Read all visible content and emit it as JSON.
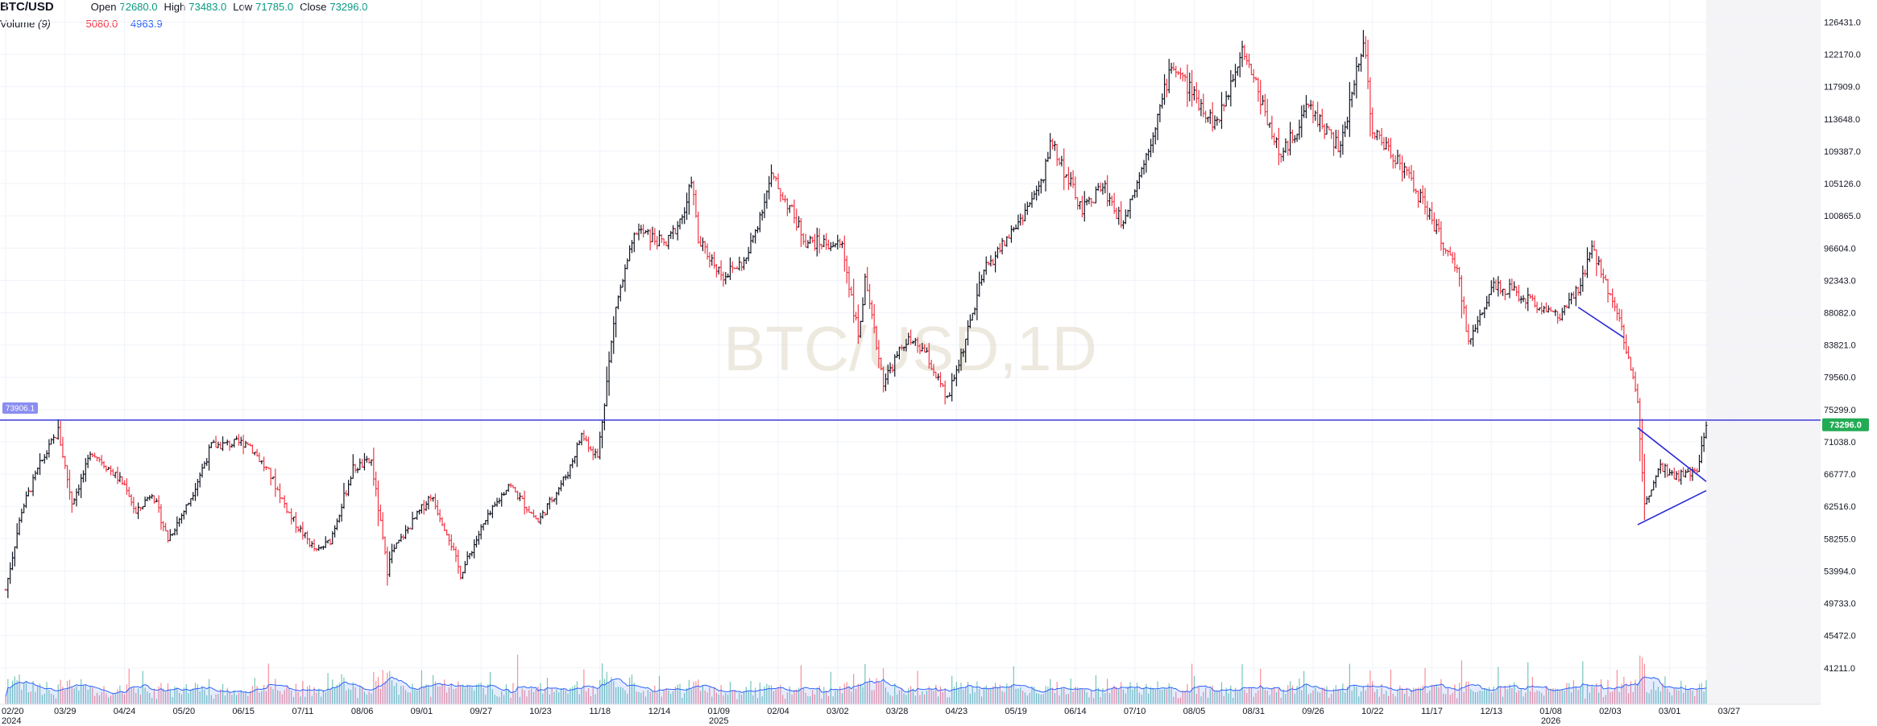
{
  "symbol": "BTC/USD",
  "legend": {
    "open_label": "Open",
    "open": "72680.0",
    "high_label": "High",
    "high": "73483.0",
    "low_label": "Low",
    "low": "71785.0",
    "close_label": "Close",
    "close": "73296.0"
  },
  "volume_legend": {
    "label": "Volume",
    "period": "(9)",
    "value1": "5080.0",
    "value2": "4963.9"
  },
  "watermark": "BTC/USD,1D",
  "colors": {
    "up": "#089981",
    "down": "#f23645",
    "bar": "#131722",
    "line": "#2a2ad6",
    "volume_ma": "#2962ff",
    "last_price": "#22ab54"
  },
  "chart_data": {
    "type": "ohlc",
    "timeframe": "1D",
    "y_ticks": [
      "126431.0",
      "122170.0",
      "117909.0",
      "113648.0",
      "109387.0",
      "105126.0",
      "100865.0",
      "96604.0",
      "92343.0",
      "88082.0",
      "83821.0",
      "79560.0",
      "75299.0",
      "71038.0",
      "66777.0",
      "62516.0",
      "58255.0",
      "53994.0",
      "49733.0",
      "45472.0",
      "41211.0"
    ],
    "x_ticks": [
      "02/20",
      "03/29",
      "04/24",
      "05/20",
      "06/15",
      "07/11",
      "08/06",
      "09/01",
      "09/27",
      "10/23",
      "11/18",
      "12/14",
      "01/09",
      "02/04",
      "03/02",
      "03/28",
      "04/23",
      "05/19",
      "06/14",
      "07/10",
      "08/05",
      "08/31",
      "09/26",
      "10/22",
      "11/17",
      "12/13",
      "01/08",
      "02/03",
      "03/01",
      "03/27"
    ],
    "x_year_labels": [
      {
        "tick": "02/20",
        "year": "2024"
      },
      {
        "tick": "01/09",
        "year": "2025"
      },
      {
        "tick": "01/08",
        "year": "2026"
      }
    ],
    "ylim": [
      38000,
      128500
    ],
    "horizontal_line": {
      "value": 73906.1,
      "label": "73906.1"
    },
    "last_price": {
      "value": 73296.0,
      "label": "73296.0"
    },
    "close_path": [
      {
        "x": "2024-02-20",
        "y": 51500
      },
      {
        "x": "2024-02-27",
        "y": 62000
      },
      {
        "x": "2024-03-06",
        "y": 68000
      },
      {
        "x": "2024-03-14",
        "y": 72500
      },
      {
        "x": "2024-03-20",
        "y": 63000
      },
      {
        "x": "2024-03-29",
        "y": 69800
      },
      {
        "x": "2024-04-13",
        "y": 65000
      },
      {
        "x": "2024-04-17",
        "y": 61500
      },
      {
        "x": "2024-04-24",
        "y": 64500
      },
      {
        "x": "2024-05-01",
        "y": 58200
      },
      {
        "x": "2024-05-10",
        "y": 63000
      },
      {
        "x": "2024-05-20",
        "y": 70500
      },
      {
        "x": "2024-06-05",
        "y": 71000
      },
      {
        "x": "2024-06-15",
        "y": 66500
      },
      {
        "x": "2024-06-24",
        "y": 61000
      },
      {
        "x": "2024-07-05",
        "y": 56500
      },
      {
        "x": "2024-07-11",
        "y": 58000
      },
      {
        "x": "2024-07-21",
        "y": 67500
      },
      {
        "x": "2024-07-29",
        "y": 68500
      },
      {
        "x": "2024-08-05",
        "y": 54000
      },
      {
        "x": "2024-08-06",
        "y": 56000
      },
      {
        "x": "2024-08-24",
        "y": 64000
      },
      {
        "x": "2024-09-01",
        "y": 58500
      },
      {
        "x": "2024-09-06",
        "y": 53500
      },
      {
        "x": "2024-09-15",
        "y": 59500
      },
      {
        "x": "2024-09-27",
        "y": 65500
      },
      {
        "x": "2024-10-10",
        "y": 60500
      },
      {
        "x": "2024-10-23",
        "y": 67000
      },
      {
        "x": "2024-10-29",
        "y": 72000
      },
      {
        "x": "2024-11-05",
        "y": 69000
      },
      {
        "x": "2024-11-13",
        "y": 89000
      },
      {
        "x": "2024-11-22",
        "y": 99000
      },
      {
        "x": "2024-12-05",
        "y": 97000
      },
      {
        "x": "2024-12-14",
        "y": 102000
      },
      {
        "x": "2024-12-16",
        "y": 106000
      },
      {
        "x": "2024-12-19",
        "y": 97500
      },
      {
        "x": "2024-12-30",
        "y": 93000
      },
      {
        "x": "2025-01-09",
        "y": 95000
      },
      {
        "x": "2025-01-20",
        "y": 106000
      },
      {
        "x": "2025-01-28",
        "y": 102000
      },
      {
        "x": "2025-02-04",
        "y": 97500
      },
      {
        "x": "2025-02-20",
        "y": 97000
      },
      {
        "x": "2025-02-27",
        "y": 85000
      },
      {
        "x": "2025-03-02",
        "y": 92000
      },
      {
        "x": "2025-03-10",
        "y": 79000
      },
      {
        "x": "2025-03-20",
        "y": 84500
      },
      {
        "x": "2025-03-28",
        "y": 83000
      },
      {
        "x": "2025-04-07",
        "y": 76500
      },
      {
        "x": "2025-04-15",
        "y": 84500
      },
      {
        "x": "2025-04-23",
        "y": 93500
      },
      {
        "x": "2025-05-08",
        "y": 100000
      },
      {
        "x": "2025-05-19",
        "y": 105500
      },
      {
        "x": "2025-05-22",
        "y": 111000
      },
      {
        "x": "2025-06-05",
        "y": 101500
      },
      {
        "x": "2025-06-14",
        "y": 105000
      },
      {
        "x": "2025-06-22",
        "y": 100000
      },
      {
        "x": "2025-07-01",
        "y": 107000
      },
      {
        "x": "2025-07-10",
        "y": 116000
      },
      {
        "x": "2025-07-14",
        "y": 121000
      },
      {
        "x": "2025-08-02",
        "y": 113000
      },
      {
        "x": "2025-08-05",
        "y": 114500
      },
      {
        "x": "2025-08-14",
        "y": 123500
      },
      {
        "x": "2025-08-31",
        "y": 108500
      },
      {
        "x": "2025-09-12",
        "y": 115500
      },
      {
        "x": "2025-09-26",
        "y": 109500
      },
      {
        "x": "2025-10-06",
        "y": 124500
      },
      {
        "x": "2025-10-10",
        "y": 112000
      },
      {
        "x": "2025-10-22",
        "y": 108000
      },
      {
        "x": "2025-11-04",
        "y": 101000
      },
      {
        "x": "2025-11-17",
        "y": 92500
      },
      {
        "x": "2025-11-21",
        "y": 84000
      },
      {
        "x": "2025-12-02",
        "y": 92000
      },
      {
        "x": "2025-12-13",
        "y": 90500
      },
      {
        "x": "2025-12-31",
        "y": 87500
      },
      {
        "x": "2026-01-08",
        "y": 91000
      },
      {
        "x": "2026-01-14",
        "y": 96500
      },
      {
        "x": "2026-01-25",
        "y": 88500
      },
      {
        "x": "2026-02-03",
        "y": 76500
      },
      {
        "x": "2026-02-06",
        "y": 62500
      },
      {
        "x": "2026-02-12",
        "y": 68000
      },
      {
        "x": "2026-02-20",
        "y": 66500
      },
      {
        "x": "2026-03-01",
        "y": 67000
      },
      {
        "x": "2026-03-05",
        "y": 73296
      }
    ],
    "trendlines": [
      {
        "from": {
          "x": "2026-01-08",
          "y": 88800
        },
        "to": {
          "x": "2026-01-28",
          "y": 84800
        }
      },
      {
        "from": {
          "x": "2026-02-03",
          "y": 72900
        },
        "to": {
          "x": "2026-03-05",
          "y": 65800
        }
      },
      {
        "from": {
          "x": "2026-02-03",
          "y": 60100
        },
        "to": {
          "x": "2026-03-05",
          "y": 64600
        }
      }
    ]
  }
}
